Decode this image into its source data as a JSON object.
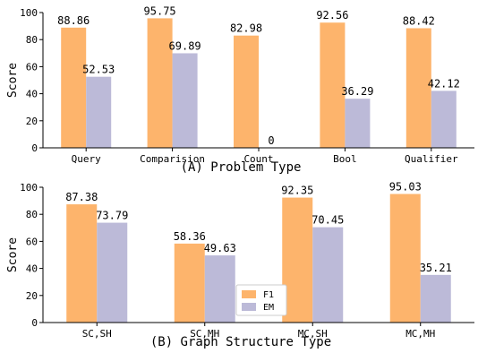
{
  "chart_data": [
    {
      "type": "bar",
      "title": "(A) Problem Type",
      "xlabel": "",
      "ylabel": "Score",
      "ylim": [
        0,
        100
      ],
      "yticks": [
        0,
        20,
        40,
        60,
        80,
        100
      ],
      "categories": [
        "Query",
        "Comparision",
        "Count",
        "Bool",
        "Qualifier"
      ],
      "series": [
        {
          "name": "F1",
          "color": "#fdb46c",
          "values": [
            88.86,
            95.75,
            82.98,
            92.56,
            88.42
          ],
          "labels": [
            "88.86",
            "95.75",
            "82.98",
            "92.56",
            "88.42"
          ]
        },
        {
          "name": "EM",
          "color": "#bcbad8",
          "values": [
            52.53,
            69.89,
            0,
            36.29,
            42.12
          ],
          "labels": [
            "52.53",
            "69.89",
            "0",
            "36.29",
            "42.12"
          ]
        }
      ],
      "grid": false,
      "legend": "none"
    },
    {
      "type": "bar",
      "title": "(B) Graph Structure Type",
      "xlabel": "",
      "ylabel": "Score",
      "ylim": [
        0,
        100
      ],
      "yticks": [
        0,
        20,
        40,
        60,
        80,
        100
      ],
      "categories": [
        "SC,SH",
        "SC,MH",
        "MC,SH",
        "MC,MH"
      ],
      "series": [
        {
          "name": "F1",
          "color": "#fdb46c",
          "values": [
            87.38,
            58.36,
            92.35,
            95.03
          ],
          "labels": [
            "87.38",
            "58.36",
            "92.35",
            "95.03"
          ]
        },
        {
          "name": "EM",
          "color": "#bcbad8",
          "values": [
            73.79,
            49.63,
            70.45,
            35.21
          ],
          "labels": [
            "73.79",
            "49.63",
            "70.45",
            "35.21"
          ]
        }
      ],
      "grid": false,
      "legend": "lower-center"
    }
  ]
}
